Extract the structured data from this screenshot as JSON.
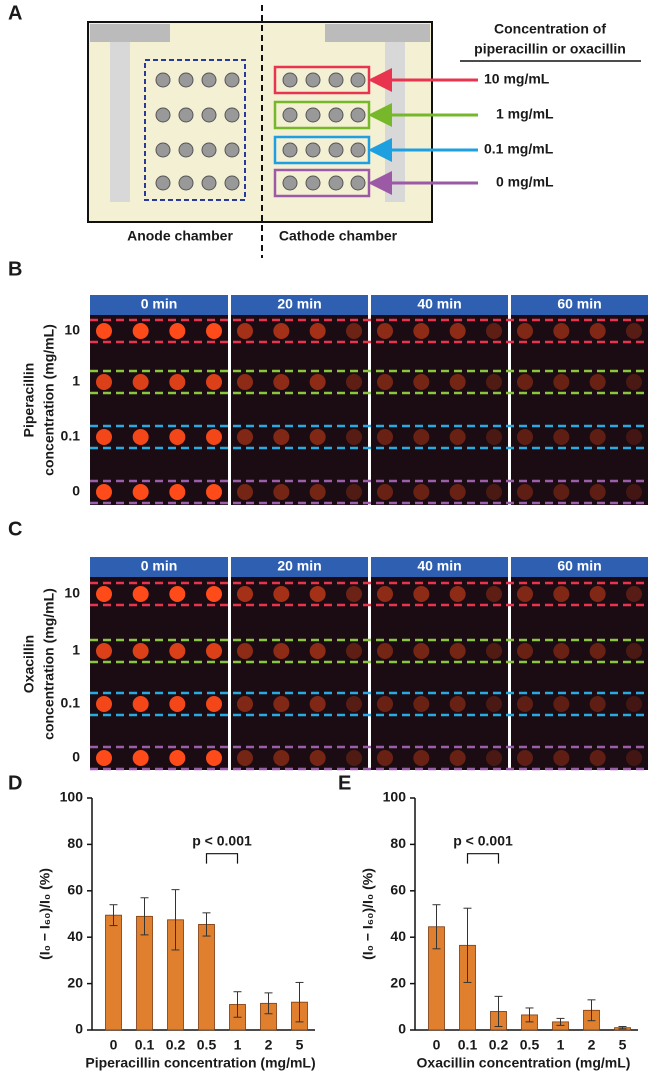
{
  "panel_a": {
    "label": "A",
    "legend_title": [
      "Concentration of",
      "piperacillin or oxacillin"
    ],
    "rows": [
      "10 mg/mL",
      "1 mg/mL",
      "0.1 mg/mL",
      "0 mg/mL"
    ],
    "chambers": [
      "Anode chamber",
      "Cathode chamber"
    ]
  },
  "panel_b": {
    "label": "B",
    "times": [
      "0 min",
      "20 min",
      "40 min",
      "60 min"
    ],
    "y_label": [
      "Piperacillin",
      "concentration (mg/mL)"
    ],
    "rows": [
      "10",
      "1",
      "0.1",
      "0"
    ]
  },
  "panel_c": {
    "label": "C",
    "times": [
      "0 min",
      "20 min",
      "40 min",
      "60 min"
    ],
    "y_label": [
      "Oxacillin",
      "concentration (mg/mL)"
    ],
    "rows": [
      "10",
      "1",
      "0.1",
      "0"
    ]
  },
  "chart_data": [
    {
      "type": "bar",
      "panel_label": "D",
      "x_label": "Piperacillin concentration (mg/mL)",
      "y_label": "(I₀ − I₆₀)/I₀ (%)",
      "categories": [
        "0",
        "0.1",
        "0.2",
        "0.5",
        "1",
        "2",
        "5"
      ],
      "values": [
        49.5,
        49,
        47.5,
        45.5,
        11,
        11.5,
        12
      ],
      "errors": [
        4.5,
        8,
        13,
        5,
        5.5,
        4.5,
        8.5
      ],
      "color": "#e0802e",
      "ylim": [
        0,
        100
      ],
      "yticks": [
        0,
        20,
        40,
        60,
        80,
        100
      ],
      "annotation": "p < 0.001"
    },
    {
      "type": "bar",
      "panel_label": "E",
      "x_label": "Oxacillin concentration (mg/mL)",
      "y_label": "(I₀ − I₆₀)/I₀ (%)",
      "categories": [
        "0",
        "0.1",
        "0.2",
        "0.5",
        "1",
        "2",
        "5"
      ],
      "values": [
        44.5,
        36.5,
        8,
        6.5,
        3.5,
        8.5,
        1
      ],
      "errors": [
        9.5,
        16,
        6.5,
        3,
        1.5,
        4.5,
        0.5
      ],
      "color": "#e0802e",
      "ylim": [
        0,
        100
      ],
      "yticks": [
        0,
        20,
        40,
        60,
        80,
        100
      ],
      "annotation": "p < 0.001"
    }
  ]
}
